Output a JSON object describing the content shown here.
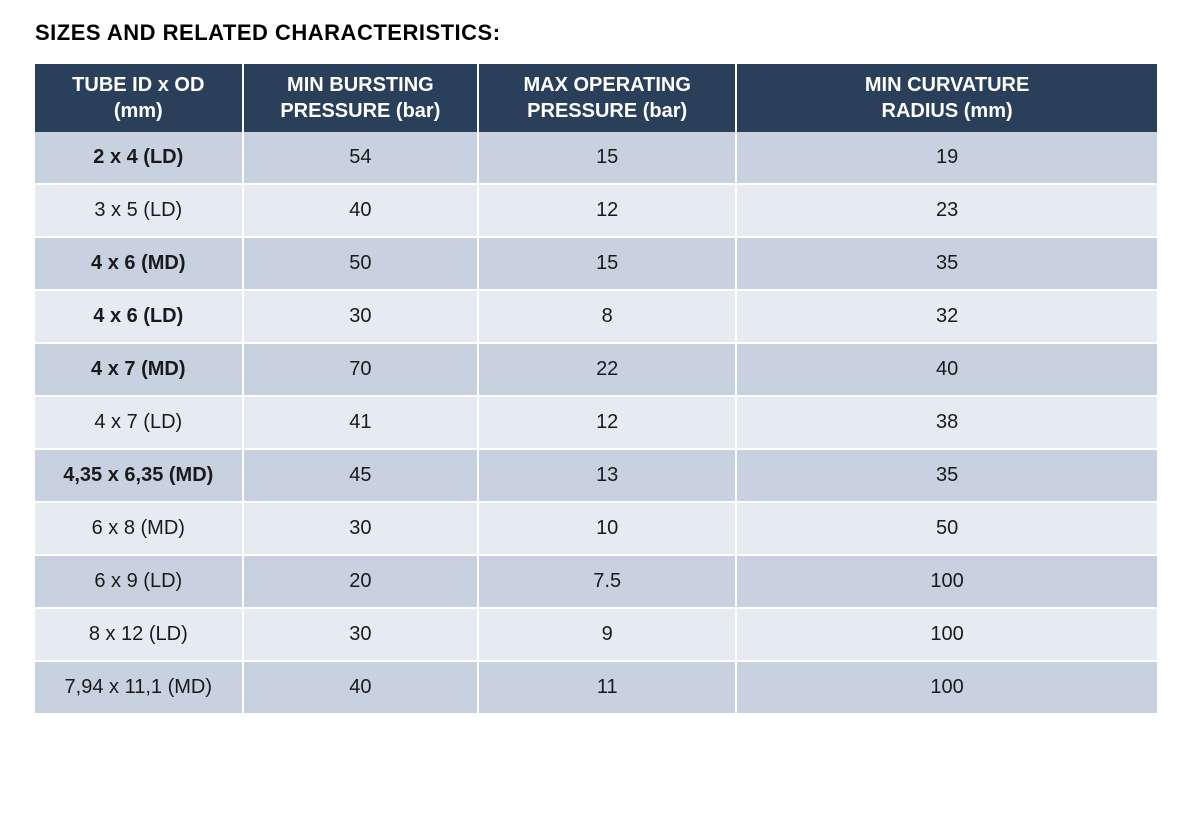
{
  "title": "SIZES AND RELATED CHARACTERISTICS:",
  "table": {
    "columns": [
      {
        "line1": "TUBE ID x OD",
        "line2": "(mm)"
      },
      {
        "line1": "MIN  BURSTING",
        "line2": "PRESSURE (bar)"
      },
      {
        "line1": "MAX OPERATING",
        "line2": "PRESSURE (bar)"
      },
      {
        "line1": "MIN CURVATURE",
        "line2": "RADIUS (mm)"
      }
    ],
    "column_widths_pct": [
      18.5,
      21,
      23,
      37.5
    ],
    "header_bg_color": "#2a3f5a",
    "header_text_color": "#ffffff",
    "row_odd_bg_color": "#c8d1e0",
    "row_even_bg_color": "#e6ebf2",
    "cell_border_color": "#ffffff",
    "text_color": "#1a1a1a",
    "title_fontsize": 22,
    "header_fontsize": 20,
    "cell_fontsize": 20,
    "rows": [
      {
        "label": "2 x 4 (LD)",
        "bold": true,
        "values": [
          "54",
          "15",
          "19"
        ]
      },
      {
        "label": "3 x 5 (LD)",
        "bold": false,
        "values": [
          "40",
          "12",
          "23"
        ]
      },
      {
        "label": "4 x 6 (MD)",
        "bold": true,
        "values": [
          "50",
          "15",
          "35"
        ]
      },
      {
        "label": "4 x 6 (LD)",
        "bold": true,
        "values": [
          "30",
          "8",
          "32"
        ]
      },
      {
        "label": "4 x 7 (MD)",
        "bold": true,
        "values": [
          "70",
          "22",
          "40"
        ]
      },
      {
        "label": "4 x 7 (LD)",
        "bold": false,
        "values": [
          "41",
          "12",
          "38"
        ]
      },
      {
        "label": "4,35 x 6,35 (MD)",
        "bold": true,
        "values": [
          "45",
          "13",
          "35"
        ]
      },
      {
        "label": "6 x 8 (MD)",
        "bold": false,
        "values": [
          "30",
          "10",
          "50"
        ]
      },
      {
        "label": "6 x 9 (LD)",
        "bold": false,
        "values": [
          "20",
          "7.5",
          "100"
        ]
      },
      {
        "label": "8 x 12 (LD)",
        "bold": false,
        "values": [
          "30",
          "9",
          "100"
        ]
      },
      {
        "label": "7,94 x 11,1 (MD)",
        "bold": false,
        "values": [
          "40",
          "11",
          "100"
        ]
      }
    ]
  }
}
